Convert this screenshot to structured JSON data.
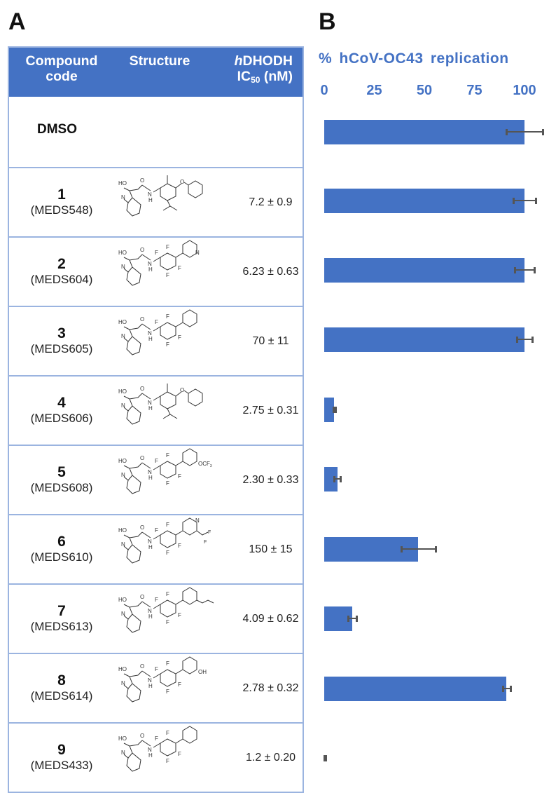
{
  "panels": {
    "a_label": "A",
    "b_label": "B"
  },
  "table": {
    "headers": {
      "code_line1": "Compound",
      "code_line2": "code",
      "structure": "Structure",
      "ic_prefix_italic": "h",
      "ic_line1_rest": "DHODH",
      "ic_line2_main": "IC",
      "ic_line2_sub": "50",
      "ic_line2_unit": " (nM)"
    },
    "dmso_label": "DMSO",
    "rows": [
      {
        "num": "1",
        "code": "(MEDS548)",
        "ic50": "7.2 ± 0.9",
        "structure": "phenoxy-isopropyl-methylphenyl"
      },
      {
        "num": "2",
        "code": "(MEDS604)",
        "ic50": "6.23 ± 0.63",
        "structure": "tetrafluoro-3-pyridyl"
      },
      {
        "num": "3",
        "code": "(MEDS605)",
        "ic50": "70 ±  11",
        "structure": "4-pyridyloxy-isopropyl-methylphenyl"
      },
      {
        "num": "4",
        "code": "(MEDS606)",
        "ic50": "2.75 ± 0.31",
        "structure": "tetrafluoro-3-methoxyphenyl"
      },
      {
        "num": "5",
        "code": "(MEDS608)",
        "ic50": "2.30 ± 0.33",
        "structure": "tetrafluoro-3-OCF3-phenyl"
      },
      {
        "num": "6",
        "code": "(MEDS610)",
        "ic50": "150 ± 15",
        "structure": "tetrafluoro-2-CF3-4-pyridyl"
      },
      {
        "num": "7",
        "code": "(MEDS613)",
        "ic50": "4.09 ± 0.62",
        "structure": "tetrafluoro-3-propoxyphenyl"
      },
      {
        "num": "8",
        "code": "(MEDS614)",
        "ic50": "2.78 ± 0.32",
        "structure": "tetrafluoro-3-hydroxyphenyl"
      },
      {
        "num": "9",
        "code": "(MEDS433)",
        "ic50": "1.2 ± 0.20",
        "structure": "tetrafluoro-phenyl"
      }
    ],
    "structure_labels": {
      "ho": "HO",
      "n": "N",
      "nh": "N",
      "h": "H",
      "o": "O",
      "f": "F",
      "ocf3": "OCF",
      "cf3_sub": "3",
      "oh": "OH"
    }
  },
  "colors": {
    "accent": "#4472c4",
    "table_border": "#9bb4e0",
    "error_bar": "#555555"
  },
  "chart_data": {
    "type": "bar",
    "orientation": "horizontal",
    "title": "% hCoV-OC43 replication",
    "xlabel": "% hCoV-OC43 replication",
    "ylabel": "",
    "xlim": [
      0,
      100
    ],
    "xticks": [
      "0",
      "25",
      "50",
      "75",
      "100"
    ],
    "grid": false,
    "legend": null,
    "categories": [
      "DMSO",
      "1 (MEDS548)",
      "2 (MEDS604)",
      "3 (MEDS605)",
      "4 (MEDS606)",
      "5 (MEDS608)",
      "6 (MEDS610)",
      "7 (MEDS613)",
      "8 (MEDS614)",
      "9 (MEDS433)"
    ],
    "values": [
      100,
      100,
      100,
      100,
      5,
      6.5,
      47,
      14,
      91,
      0.3
    ],
    "errors": [
      9,
      5.5,
      5,
      4,
      0.5,
      1.5,
      8.5,
      2,
      2,
      0.3
    ]
  }
}
